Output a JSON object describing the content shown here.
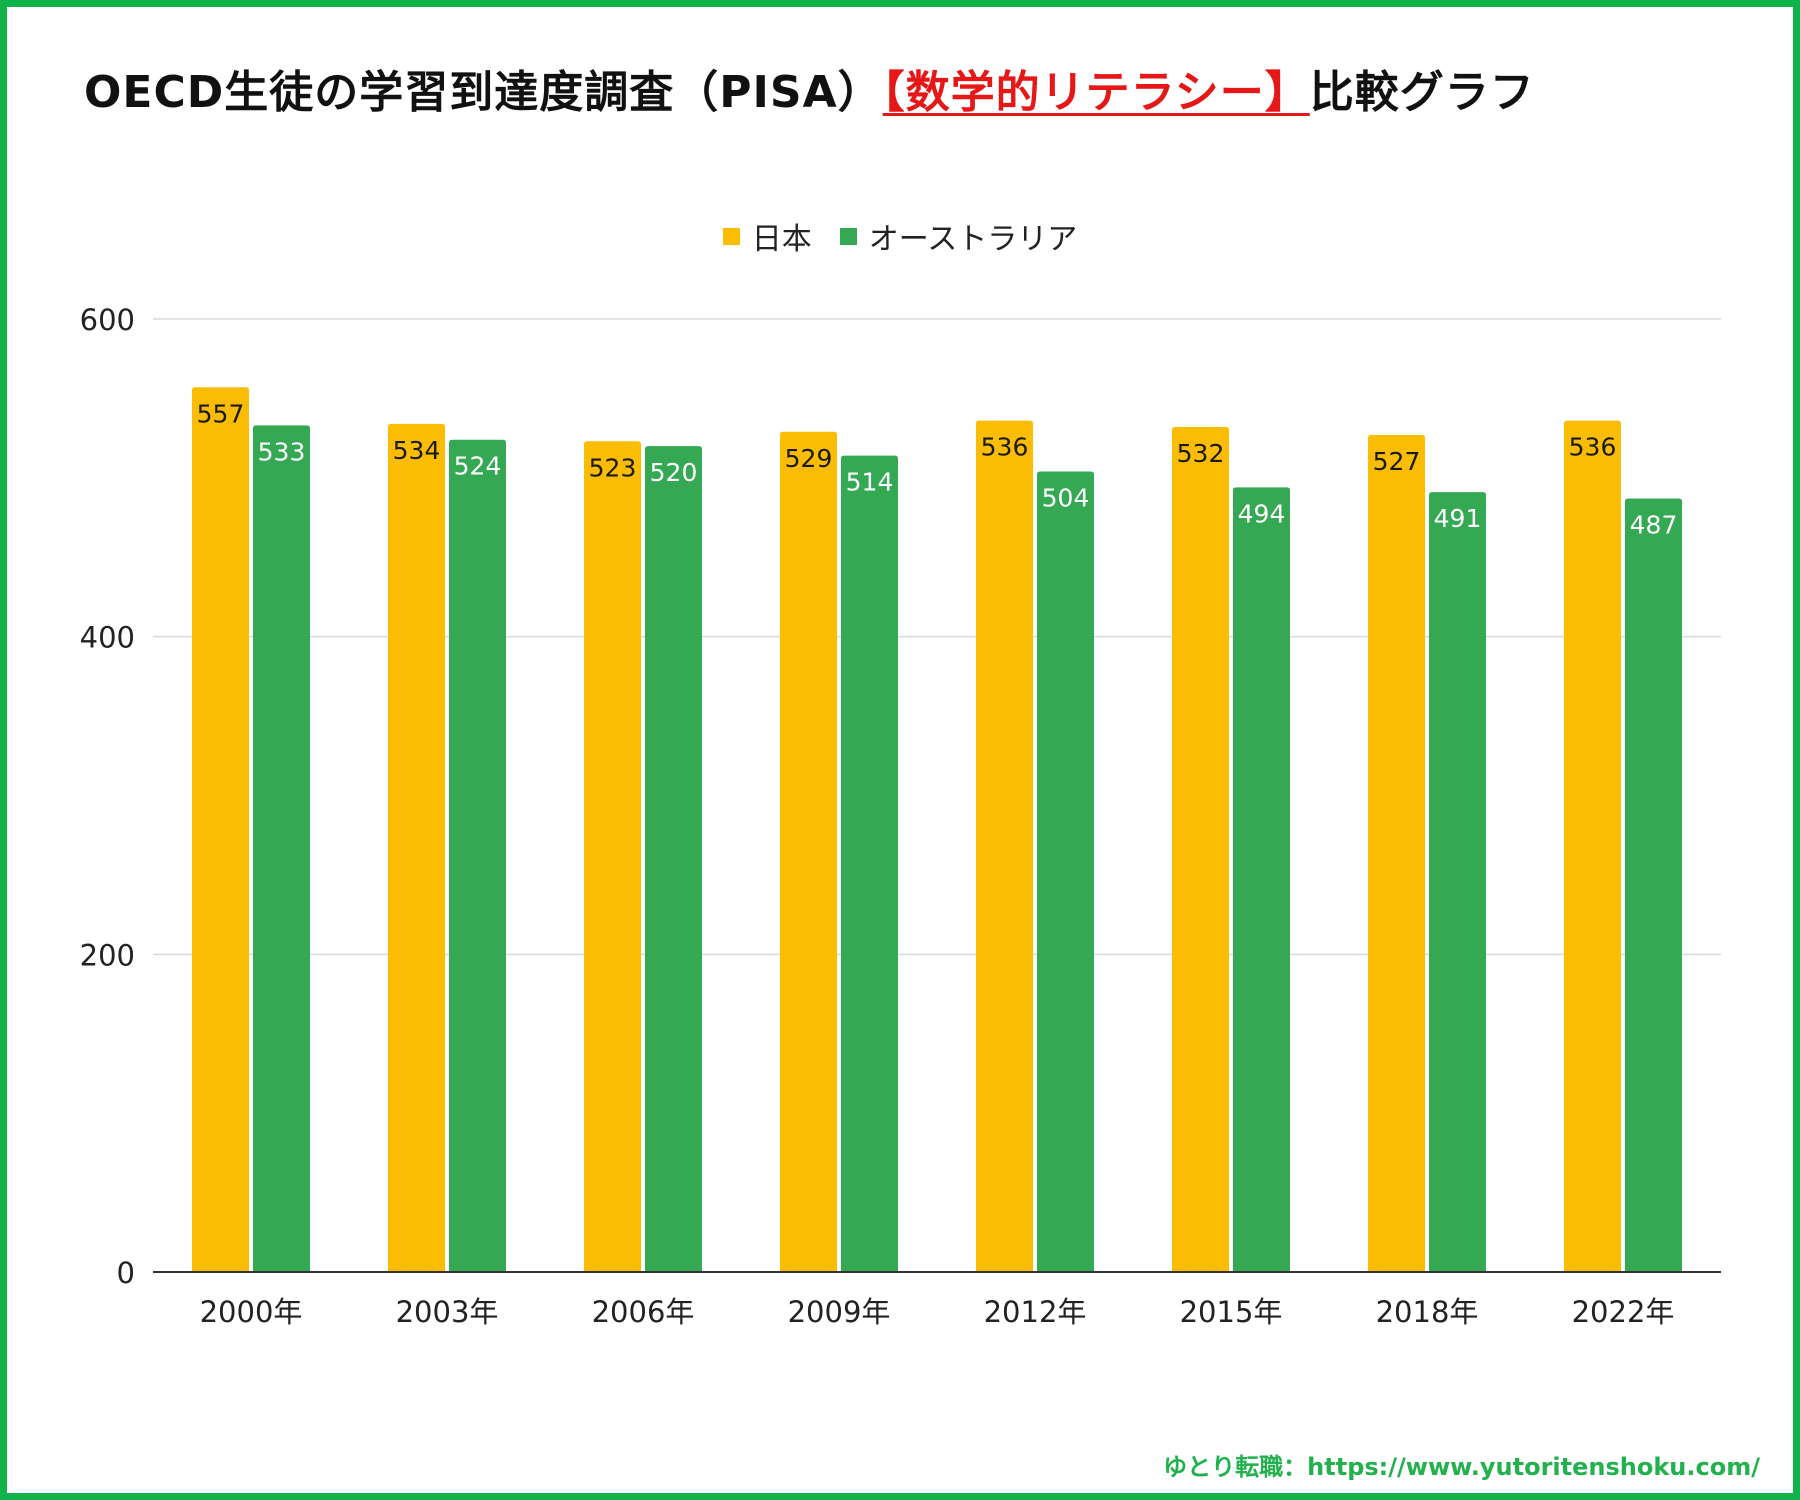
{
  "title": {
    "prefix": "OECD生徒の学習到達度調査（PISA）",
    "highlight": "【数学的リテラシー】",
    "suffix": "比較グラフ"
  },
  "footer": "ゆとり転職：https://www.yutoritenshoku.com/",
  "colors": {
    "japan": "#fbbc04",
    "australia": "#34a853",
    "frame": "#10b24a",
    "highlight": "#e61717"
  },
  "chart_data": {
    "type": "bar",
    "categories": [
      "2000年",
      "2003年",
      "2006年",
      "2009年",
      "2012年",
      "2015年",
      "2018年",
      "2022年"
    ],
    "series": [
      {
        "name": "日本",
        "color": "#fbbc04",
        "values": [
          557,
          534,
          523,
          529,
          536,
          532,
          527,
          536
        ]
      },
      {
        "name": "オーストラリア",
        "color": "#34a853",
        "values": [
          533,
          524,
          520,
          514,
          504,
          494,
          491,
          487
        ]
      }
    ],
    "ylim": [
      0,
      600
    ],
    "yticks": [
      0,
      200,
      400,
      600
    ],
    "grid": true,
    "legend": "top-center",
    "data_labels": true
  }
}
